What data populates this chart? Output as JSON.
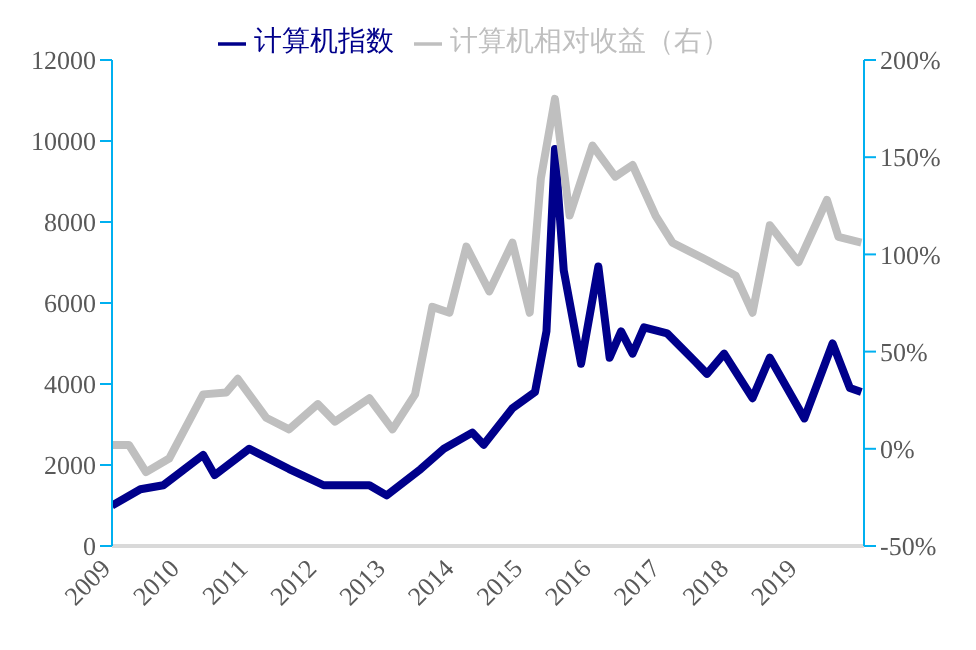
{
  "chart_data": {
    "type": "line",
    "legend": "top",
    "grid": false,
    "marker": "none",
    "line_style": "solid",
    "xlim": [
      "2009-01-01",
      "2019-12-15"
    ],
    "xticks": [
      {
        "value": "2009-01-01",
        "label": "2009"
      },
      {
        "value": "2010-01-01",
        "label": "2010"
      },
      {
        "value": "2011-01-01",
        "label": "2011"
      },
      {
        "value": "2012-01-01",
        "label": "2012"
      },
      {
        "value": "2013-01-01",
        "label": "2013"
      },
      {
        "value": "2014-01-01",
        "label": "2014"
      },
      {
        "value": "2015-01-01",
        "label": "2015"
      },
      {
        "value": "2016-01-01",
        "label": "2016"
      },
      {
        "value": "2017-01-01",
        "label": "2017"
      },
      {
        "value": "2018-01-01",
        "label": "2018"
      },
      {
        "value": "2019-01-01",
        "label": "2019"
      }
    ],
    "ylim": [
      0,
      12000
    ],
    "yticks": [
      0,
      2000,
      4000,
      6000,
      8000,
      10000,
      12000
    ],
    "y2lim": [
      -50,
      200
    ],
    "y2ticks": [
      {
        "value": -50,
        "label": "-50%"
      },
      {
        "value": 0,
        "label": "0%"
      },
      {
        "value": 50,
        "label": "50%"
      },
      {
        "value": 100,
        "label": "100%"
      },
      {
        "value": 150,
        "label": "150%"
      },
      {
        "value": 200,
        "label": "200%"
      }
    ],
    "series": [
      {
        "name": "计算机指数",
        "color": "#00008b",
        "x": [
          "2009-01",
          "2009-06",
          "2009-10",
          "2010-05",
          "2010-07",
          "2011-01",
          "2011-08",
          "2012-02",
          "2012-10",
          "2013-01",
          "2013-07",
          "2013-11",
          "2014-04",
          "2014-06",
          "2014-11",
          "2015-03",
          "2015-05",
          "2015-06-15",
          "2015-08",
          "2015-11",
          "2016-02",
          "2016-04",
          "2016-06",
          "2016-08",
          "2016-10",
          "2017-02",
          "2017-07",
          "2017-09",
          "2017-12",
          "2018-05",
          "2018-08",
          "2019-02",
          "2019-07",
          "2019-10",
          "2019-12"
        ],
        "values": [
          1000,
          1400,
          1500,
          2250,
          1750,
          2400,
          1900,
          1500,
          1500,
          1250,
          1900,
          2400,
          2800,
          2500,
          3400,
          3800,
          5300,
          9800,
          6800,
          4500,
          6900,
          4650,
          5300,
          4750,
          5400,
          5250,
          4550,
          4250,
          4750,
          3650,
          4650,
          3150,
          5000,
          3900,
          3800
        ]
      },
      {
        "name": "计算机相对收益（右）",
        "color": "#bfbfbf",
        "axis": "y2",
        "x": [
          "2009-01",
          "2009-04",
          "2009-07",
          "2009-11",
          "2010-05",
          "2010-09",
          "2010-11",
          "2011-04",
          "2011-08",
          "2012-01",
          "2012-04",
          "2012-10",
          "2013-02",
          "2013-06",
          "2013-09",
          "2013-12",
          "2014-03",
          "2014-07",
          "2014-11",
          "2015-02",
          "2015-04",
          "2015-06-15",
          "2015-09",
          "2016-01",
          "2016-05",
          "2016-08",
          "2016-12",
          "2017-03",
          "2017-09",
          "2018-02",
          "2018-05",
          "2018-08",
          "2019-01",
          "2019-06",
          "2019-08",
          "2019-12"
        ],
        "values": [
          2,
          2,
          -12,
          -5,
          28,
          29,
          36,
          16,
          10,
          23,
          14,
          26,
          10,
          28,
          73,
          70,
          104,
          81,
          106,
          70,
          139,
          180,
          120,
          156,
          140,
          146,
          120,
          106,
          97,
          89,
          70,
          115,
          96,
          128,
          109,
          106
        ]
      }
    ]
  }
}
